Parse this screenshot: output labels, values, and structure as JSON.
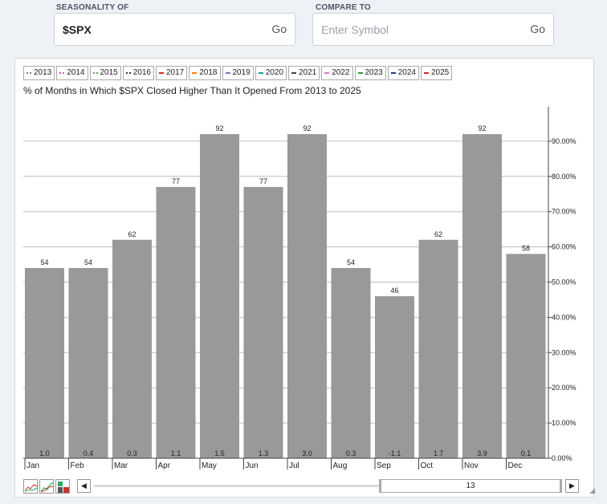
{
  "seasonality": {
    "label": "SEASONALITY OF",
    "value": "$SPX",
    "go": "Go"
  },
  "compare": {
    "label": "COMPARE TO",
    "placeholder": "Enter Symbol",
    "go": "Go"
  },
  "legend": [
    {
      "label": "2013",
      "color": "#7a7a7a",
      "style": "dotted"
    },
    {
      "label": "2014",
      "color": "#c45ab3",
      "style": "dotted"
    },
    {
      "label": "2015",
      "color": "#4daf4a",
      "style": "dotted"
    },
    {
      "label": "2016",
      "color": "#333333",
      "style": "dotted"
    },
    {
      "label": "2017",
      "color": "#d62728",
      "style": "solid"
    },
    {
      "label": "2018",
      "color": "#ff7f0e",
      "style": "solid"
    },
    {
      "label": "2019",
      "color": "#9467bd",
      "style": "solid"
    },
    {
      "label": "2020",
      "color": "#17a2a8",
      "style": "solid"
    },
    {
      "label": "2021",
      "color": "#444444",
      "style": "solid"
    },
    {
      "label": "2022",
      "color": "#e377c2",
      "style": "solid"
    },
    {
      "label": "2023",
      "color": "#2ca02c",
      "style": "solid"
    },
    {
      "label": "2024",
      "color": "#1f3a93",
      "style": "solid"
    },
    {
      "label": "2025",
      "color": "#d62728",
      "style": "solid"
    }
  ],
  "chart_data": {
    "type": "bar",
    "title": "% of Months in Which $SPX Closed Higher Than It Opened From 2013 to 2025",
    "categories": [
      "Jan",
      "Feb",
      "Mar",
      "Apr",
      "May",
      "Jun",
      "Jul",
      "Aug",
      "Sep",
      "Oct",
      "Nov",
      "Dec"
    ],
    "values": [
      54,
      54,
      62,
      77,
      92,
      77,
      92,
      54,
      46,
      62,
      92,
      58
    ],
    "value_labels": [
      "54",
      "54",
      "62",
      "77",
      "92",
      "77",
      "92",
      "54",
      "46",
      "62",
      "92",
      "58"
    ],
    "avg_change": [
      "1.0",
      "0.4",
      "0.3",
      "1.1",
      "1.5",
      "1.3",
      "3.0",
      "0.3",
      "-1.1",
      "1.7",
      "3.9",
      "0.1"
    ],
    "yticks": [
      "90.00%",
      "80.00%",
      "70.00%",
      "60.00%",
      "50.00%",
      "40.00%",
      "30.00%",
      "20.00%",
      "10.00%",
      "0.00%"
    ],
    "ytick_values": [
      90,
      80,
      70,
      60,
      50,
      40,
      30,
      20,
      10,
      0
    ],
    "ylim": [
      0,
      100
    ],
    "y_axis_side": "right",
    "grid": true,
    "bar_color": "#999999"
  },
  "scroller": {
    "value": "13",
    "left": "◀",
    "right": "▶"
  }
}
